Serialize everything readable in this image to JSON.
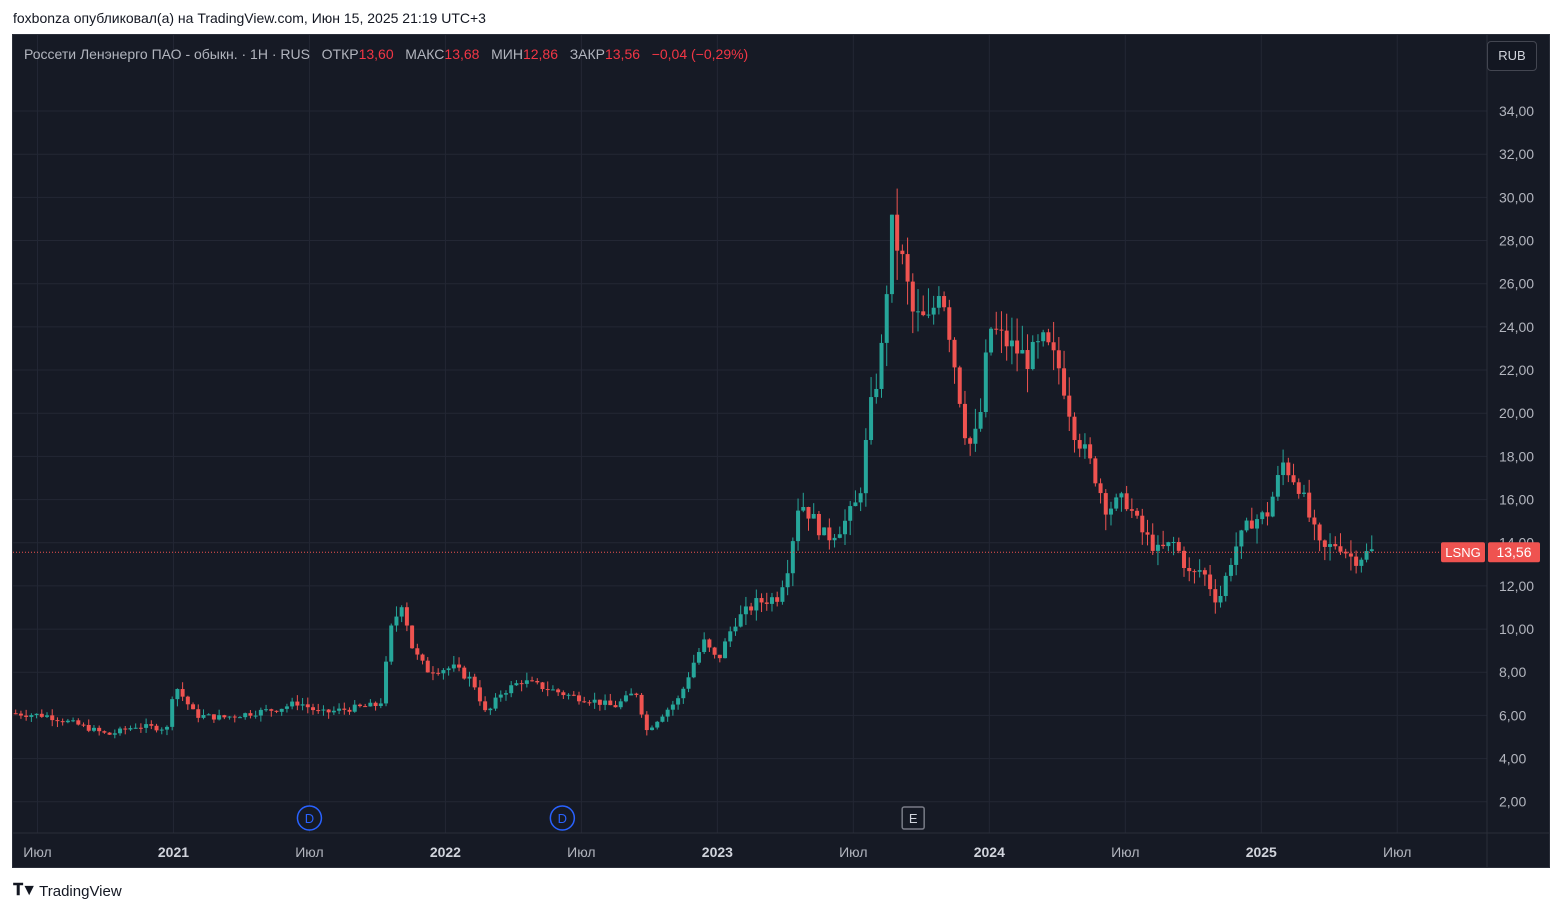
{
  "caption": "foxbonza опубликовал(а) на TradingView.com, Июн 15, 2025 21:19 UTC+3",
  "legend": {
    "symbol_desc": "Россети Ленэнерго ПАО - обыкн. · 1Н · RUS",
    "open_label": "ОТКР",
    "open": "13,60",
    "high_label": "МАКС",
    "high": "13,68",
    "low_label": "МИН",
    "low": "12,86",
    "close_label": "ЗАКР",
    "close": "13,56",
    "change": "−0,04 (−0,29%)"
  },
  "currency": "RUB",
  "footer": {
    "brand": "TradingView"
  },
  "colors": {
    "bg": "#161a25",
    "up": "#26a69a",
    "down": "#ef5350",
    "grid": "#232734",
    "text": "#b2b5be"
  },
  "chart_data": {
    "type": "candlestick",
    "symbol": "LSNG",
    "last_price": 13.56,
    "last_price_label": "13,56",
    "ylim": [
      1.2,
      35.3
    ],
    "y_ticks": [
      {
        "v": 2,
        "label": "2,00"
      },
      {
        "v": 4,
        "label": "4,00"
      },
      {
        "v": 6,
        "label": "6,00"
      },
      {
        "v": 8,
        "label": "8,00"
      },
      {
        "v": 10,
        "label": "10,00"
      },
      {
        "v": 12,
        "label": "12,00"
      },
      {
        "v": 14,
        "label": "14,00"
      },
      {
        "v": 16,
        "label": "16,00"
      },
      {
        "v": 18,
        "label": "18,00"
      },
      {
        "v": 20,
        "label": "20,00"
      },
      {
        "v": 22,
        "label": "22,00"
      },
      {
        "v": 24,
        "label": "24,00"
      },
      {
        "v": 26,
        "label": "26,00"
      },
      {
        "v": 28,
        "label": "28,00"
      },
      {
        "v": 30,
        "label": "30,00"
      },
      {
        "v": 32,
        "label": "32,00"
      },
      {
        "v": 34,
        "label": "34,00"
      }
    ],
    "x_ticks": [
      {
        "t": 2020.5,
        "label": "Июл",
        "bold": false
      },
      {
        "t": 2021.0,
        "label": "2021",
        "bold": true
      },
      {
        "t": 2021.5,
        "label": "Июл",
        "bold": false
      },
      {
        "t": 2022.0,
        "label": "2022",
        "bold": true
      },
      {
        "t": 2022.5,
        "label": "Июл",
        "bold": false
      },
      {
        "t": 2023.0,
        "label": "2023",
        "bold": true
      },
      {
        "t": 2023.5,
        "label": "Июл",
        "bold": false
      },
      {
        "t": 2024.0,
        "label": "2024",
        "bold": true
      },
      {
        "t": 2024.5,
        "label": "Июл",
        "bold": false
      },
      {
        "t": 2025.0,
        "label": "2025",
        "bold": true
      },
      {
        "t": 2025.5,
        "label": "Июл",
        "bold": false
      }
    ],
    "xlim": [
      2020.41,
      2025.83
    ],
    "events": [
      {
        "t": 2021.5,
        "label": "D"
      },
      {
        "t": 2022.43,
        "label": "D"
      },
      {
        "t": 2023.72,
        "label": "E"
      }
    ],
    "price_points": [
      [
        2020.42,
        6.1
      ],
      [
        2020.55,
        6.0
      ],
      [
        2020.66,
        5.6
      ],
      [
        2020.78,
        5.1
      ],
      [
        2020.88,
        5.5
      ],
      [
        2021.0,
        5.4
      ],
      [
        2021.02,
        7.5
      ],
      [
        2021.1,
        6.0
      ],
      [
        2021.2,
        5.9
      ],
      [
        2021.3,
        6.1
      ],
      [
        2021.4,
        6.3
      ],
      [
        2021.48,
        6.6
      ],
      [
        2021.56,
        6.1
      ],
      [
        2021.66,
        6.3
      ],
      [
        2021.78,
        6.5
      ],
      [
        2021.82,
        10.0
      ],
      [
        2021.86,
        11.3
      ],
      [
        2021.9,
        9.0
      ],
      [
        2021.95,
        8.1
      ],
      [
        2022.05,
        8.2
      ],
      [
        2022.12,
        7.6
      ],
      [
        2022.17,
        6.0
      ],
      [
        2022.22,
        7.0
      ],
      [
        2022.3,
        7.6
      ],
      [
        2022.38,
        7.3
      ],
      [
        2022.48,
        6.9
      ],
      [
        2022.56,
        6.7
      ],
      [
        2022.64,
        6.4
      ],
      [
        2022.72,
        7.1
      ],
      [
        2022.76,
        5.3
      ],
      [
        2022.82,
        6.1
      ],
      [
        2022.88,
        6.8
      ],
      [
        2022.93,
        8.4
      ],
      [
        2022.97,
        9.4
      ],
      [
        2023.02,
        8.5
      ],
      [
        2023.08,
        10.3
      ],
      [
        2023.16,
        11.2
      ],
      [
        2023.24,
        11.5
      ],
      [
        2023.28,
        13.0
      ],
      [
        2023.32,
        16.0
      ],
      [
        2023.36,
        15.3
      ],
      [
        2023.42,
        14.2
      ],
      [
        2023.48,
        14.8
      ],
      [
        2023.54,
        16.0
      ],
      [
        2023.58,
        20.0
      ],
      [
        2023.62,
        22.5
      ],
      [
        2023.66,
        28.6
      ],
      [
        2023.7,
        27.0
      ],
      [
        2023.74,
        24.5
      ],
      [
        2023.8,
        24.2
      ],
      [
        2023.84,
        26.2
      ],
      [
        2023.88,
        23.2
      ],
      [
        2023.92,
        20.0
      ],
      [
        2023.94,
        18.4
      ],
      [
        2023.98,
        19.2
      ],
      [
        2024.02,
        24.0
      ],
      [
        2024.08,
        23.3
      ],
      [
        2024.16,
        22.5
      ],
      [
        2024.22,
        23.3
      ],
      [
        2024.28,
        22.0
      ],
      [
        2024.33,
        19.3
      ],
      [
        2024.4,
        17.4
      ],
      [
        2024.45,
        15.6
      ],
      [
        2024.52,
        16.0
      ],
      [
        2024.58,
        14.5
      ],
      [
        2024.64,
        13.6
      ],
      [
        2024.7,
        14.0
      ],
      [
        2024.76,
        12.4
      ],
      [
        2024.8,
        12.8
      ],
      [
        2024.86,
        11.2
      ],
      [
        2024.92,
        13.7
      ],
      [
        2024.98,
        15.0
      ],
      [
        2025.04,
        15.3
      ],
      [
        2025.1,
        17.7
      ],
      [
        2025.16,
        16.6
      ],
      [
        2025.2,
        15.0
      ],
      [
        2025.24,
        13.6
      ],
      [
        2025.3,
        14.0
      ],
      [
        2025.36,
        13.2
      ],
      [
        2025.42,
        13.6
      ]
    ]
  }
}
